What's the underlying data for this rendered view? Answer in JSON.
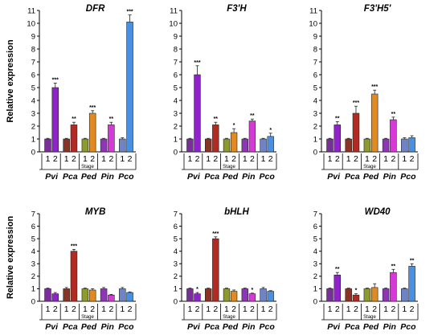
{
  "figure": {
    "ylabel": "Relative expression",
    "stage_label": "Stage",
    "stages": [
      "1",
      "2"
    ],
    "species": [
      "Pvi",
      "Pca",
      "Ped",
      "Pin",
      "Pco"
    ],
    "species_colors": {
      "Pvi": [
        "#7a2e9c",
        "#8e24c8"
      ],
      "Pca": [
        "#8a3524",
        "#b22a22"
      ],
      "Ped": [
        "#8d9a2e",
        "#e08a20"
      ],
      "Pin": [
        "#8e36b8",
        "#d63ad6"
      ],
      "Pco": [
        "#6f84c6",
        "#4a90e2"
      ]
    }
  },
  "chart_data": [
    {
      "type": "bar",
      "title": "DFR",
      "categories": [
        "Pvi-1",
        "Pvi-2",
        "Pca-1",
        "Pca-2",
        "Ped-1",
        "Ped-2",
        "Pin-1",
        "Pin-2",
        "Pco-1",
        "Pco-2"
      ],
      "values": [
        1.0,
        5.0,
        1.0,
        2.1,
        1.0,
        3.0,
        1.0,
        2.1,
        1.0,
        10.1
      ],
      "errors": [
        0.05,
        0.35,
        0.05,
        0.2,
        0.05,
        0.2,
        0.05,
        0.2,
        0.1,
        0.55
      ],
      "significance": [
        "",
        "***",
        "",
        "**",
        "",
        "***",
        "",
        "**",
        "",
        "***"
      ],
      "ylabel": "Relative expression",
      "ylim": [
        0,
        11
      ],
      "yticks": [
        0,
        1,
        2,
        3,
        4,
        5,
        6,
        7,
        8,
        9,
        10,
        11
      ]
    },
    {
      "type": "bar",
      "title": "F3'H",
      "categories": [
        "Pvi-1",
        "Pvi-2",
        "Pca-1",
        "Pca-2",
        "Ped-1",
        "Ped-2",
        "Pin-1",
        "Pin-2",
        "Pco-1",
        "Pco-2"
      ],
      "values": [
        1.0,
        6.0,
        1.0,
        2.1,
        1.0,
        1.5,
        1.0,
        2.4,
        1.0,
        1.2
      ],
      "errors": [
        0.05,
        0.7,
        0.05,
        0.2,
        0.05,
        0.3,
        0.05,
        0.15,
        0.05,
        0.25
      ],
      "significance": [
        "",
        "***",
        "",
        "**",
        "",
        "*",
        "",
        "**",
        "",
        "*"
      ],
      "ylabel": "",
      "ylim": [
        0,
        11
      ],
      "yticks": [
        0,
        1,
        2,
        3,
        4,
        5,
        6,
        7,
        8,
        9,
        10,
        11
      ]
    },
    {
      "type": "bar",
      "title": "F3'H5'",
      "categories": [
        "Pvi-1",
        "Pvi-2",
        "Pca-1",
        "Pca-2",
        "Ped-1",
        "Ped-2",
        "Pin-1",
        "Pin-2",
        "Pco-1",
        "Pco-2"
      ],
      "values": [
        1.0,
        2.1,
        1.0,
        3.0,
        1.0,
        4.5,
        1.0,
        2.5,
        1.0,
        1.1
      ],
      "errors": [
        0.05,
        0.25,
        0.05,
        0.55,
        0.05,
        0.3,
        0.05,
        0.2,
        0.1,
        0.15
      ],
      "significance": [
        "",
        "**",
        "",
        "***",
        "",
        "***",
        "",
        "**",
        "",
        ""
      ],
      "ylabel": "",
      "ylim": [
        0,
        11
      ],
      "yticks": [
        0,
        1,
        2,
        3,
        4,
        5,
        6,
        7,
        8,
        9,
        10,
        11
      ]
    },
    {
      "type": "bar",
      "title": "MYB",
      "categories": [
        "Pvi-1",
        "Pvi-2",
        "Pca-1",
        "Pca-2",
        "Ped-1",
        "Ped-2",
        "Pin-1",
        "Pin-2",
        "Pco-1",
        "Pco-2"
      ],
      "values": [
        1.0,
        0.6,
        1.0,
        4.0,
        1.0,
        0.9,
        1.0,
        0.5,
        1.0,
        0.7
      ],
      "errors": [
        0.05,
        0.1,
        0.1,
        0.15,
        0.05,
        0.1,
        0.1,
        0.05,
        0.1,
        0.05
      ],
      "significance": [
        "",
        "",
        "",
        "***",
        "",
        "",
        "",
        "",
        "",
        ""
      ],
      "ylabel": "Relative expression",
      "ylim": [
        0,
        7
      ],
      "yticks": [
        0,
        1,
        2,
        3,
        4,
        5,
        6,
        7
      ]
    },
    {
      "type": "bar",
      "title": "bHLH",
      "categories": [
        "Pvi-1",
        "Pvi-2",
        "Pca-1",
        "Pca-2",
        "Ped-1",
        "Ped-2",
        "Pin-1",
        "Pin-2",
        "Pco-1",
        "Pco-2"
      ],
      "values": [
        1.0,
        0.6,
        1.0,
        5.0,
        1.0,
        0.8,
        1.0,
        0.6,
        1.0,
        0.8
      ],
      "errors": [
        0.05,
        0.1,
        0.05,
        0.15,
        0.05,
        0.1,
        0.05,
        0.05,
        0.1,
        0.05
      ],
      "significance": [
        "",
        "*",
        "",
        "***",
        "",
        "",
        "",
        "*",
        "",
        ""
      ],
      "ylabel": "",
      "ylim": [
        0,
        7
      ],
      "yticks": [
        0,
        1,
        2,
        3,
        4,
        5,
        6,
        7
      ]
    },
    {
      "type": "bar",
      "title": "WD40",
      "categories": [
        "Pvi-1",
        "Pvi-2",
        "Pca-1",
        "Pca-2",
        "Ped-1",
        "Ped-2",
        "Pin-1",
        "Pin-2",
        "Pco-1",
        "Pco-2"
      ],
      "values": [
        1.0,
        2.1,
        1.0,
        0.5,
        1.0,
        1.1,
        1.0,
        2.3,
        1.0,
        2.8
      ],
      "errors": [
        0.05,
        0.2,
        0.05,
        0.1,
        0.05,
        0.3,
        0.05,
        0.25,
        0.05,
        0.2
      ],
      "significance": [
        "",
        "**",
        "",
        "*",
        "",
        "",
        "",
        "**",
        "",
        "**"
      ],
      "ylabel": "",
      "ylim": [
        0,
        7
      ],
      "yticks": [
        0,
        1,
        2,
        3,
        4,
        5,
        6,
        7
      ]
    }
  ]
}
